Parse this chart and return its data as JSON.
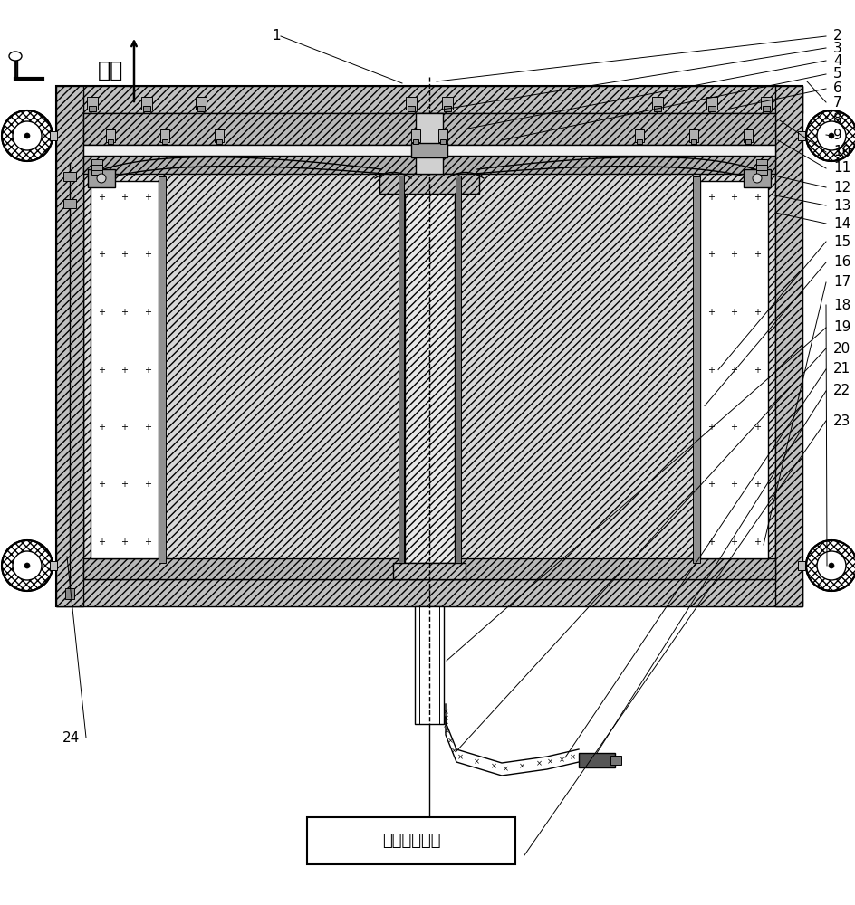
{
  "bg_color": "#ffffff",
  "label_top": "上方",
  "label_box": "压力补偿系统",
  "fig_width": 9.44,
  "fig_height": 10.0
}
